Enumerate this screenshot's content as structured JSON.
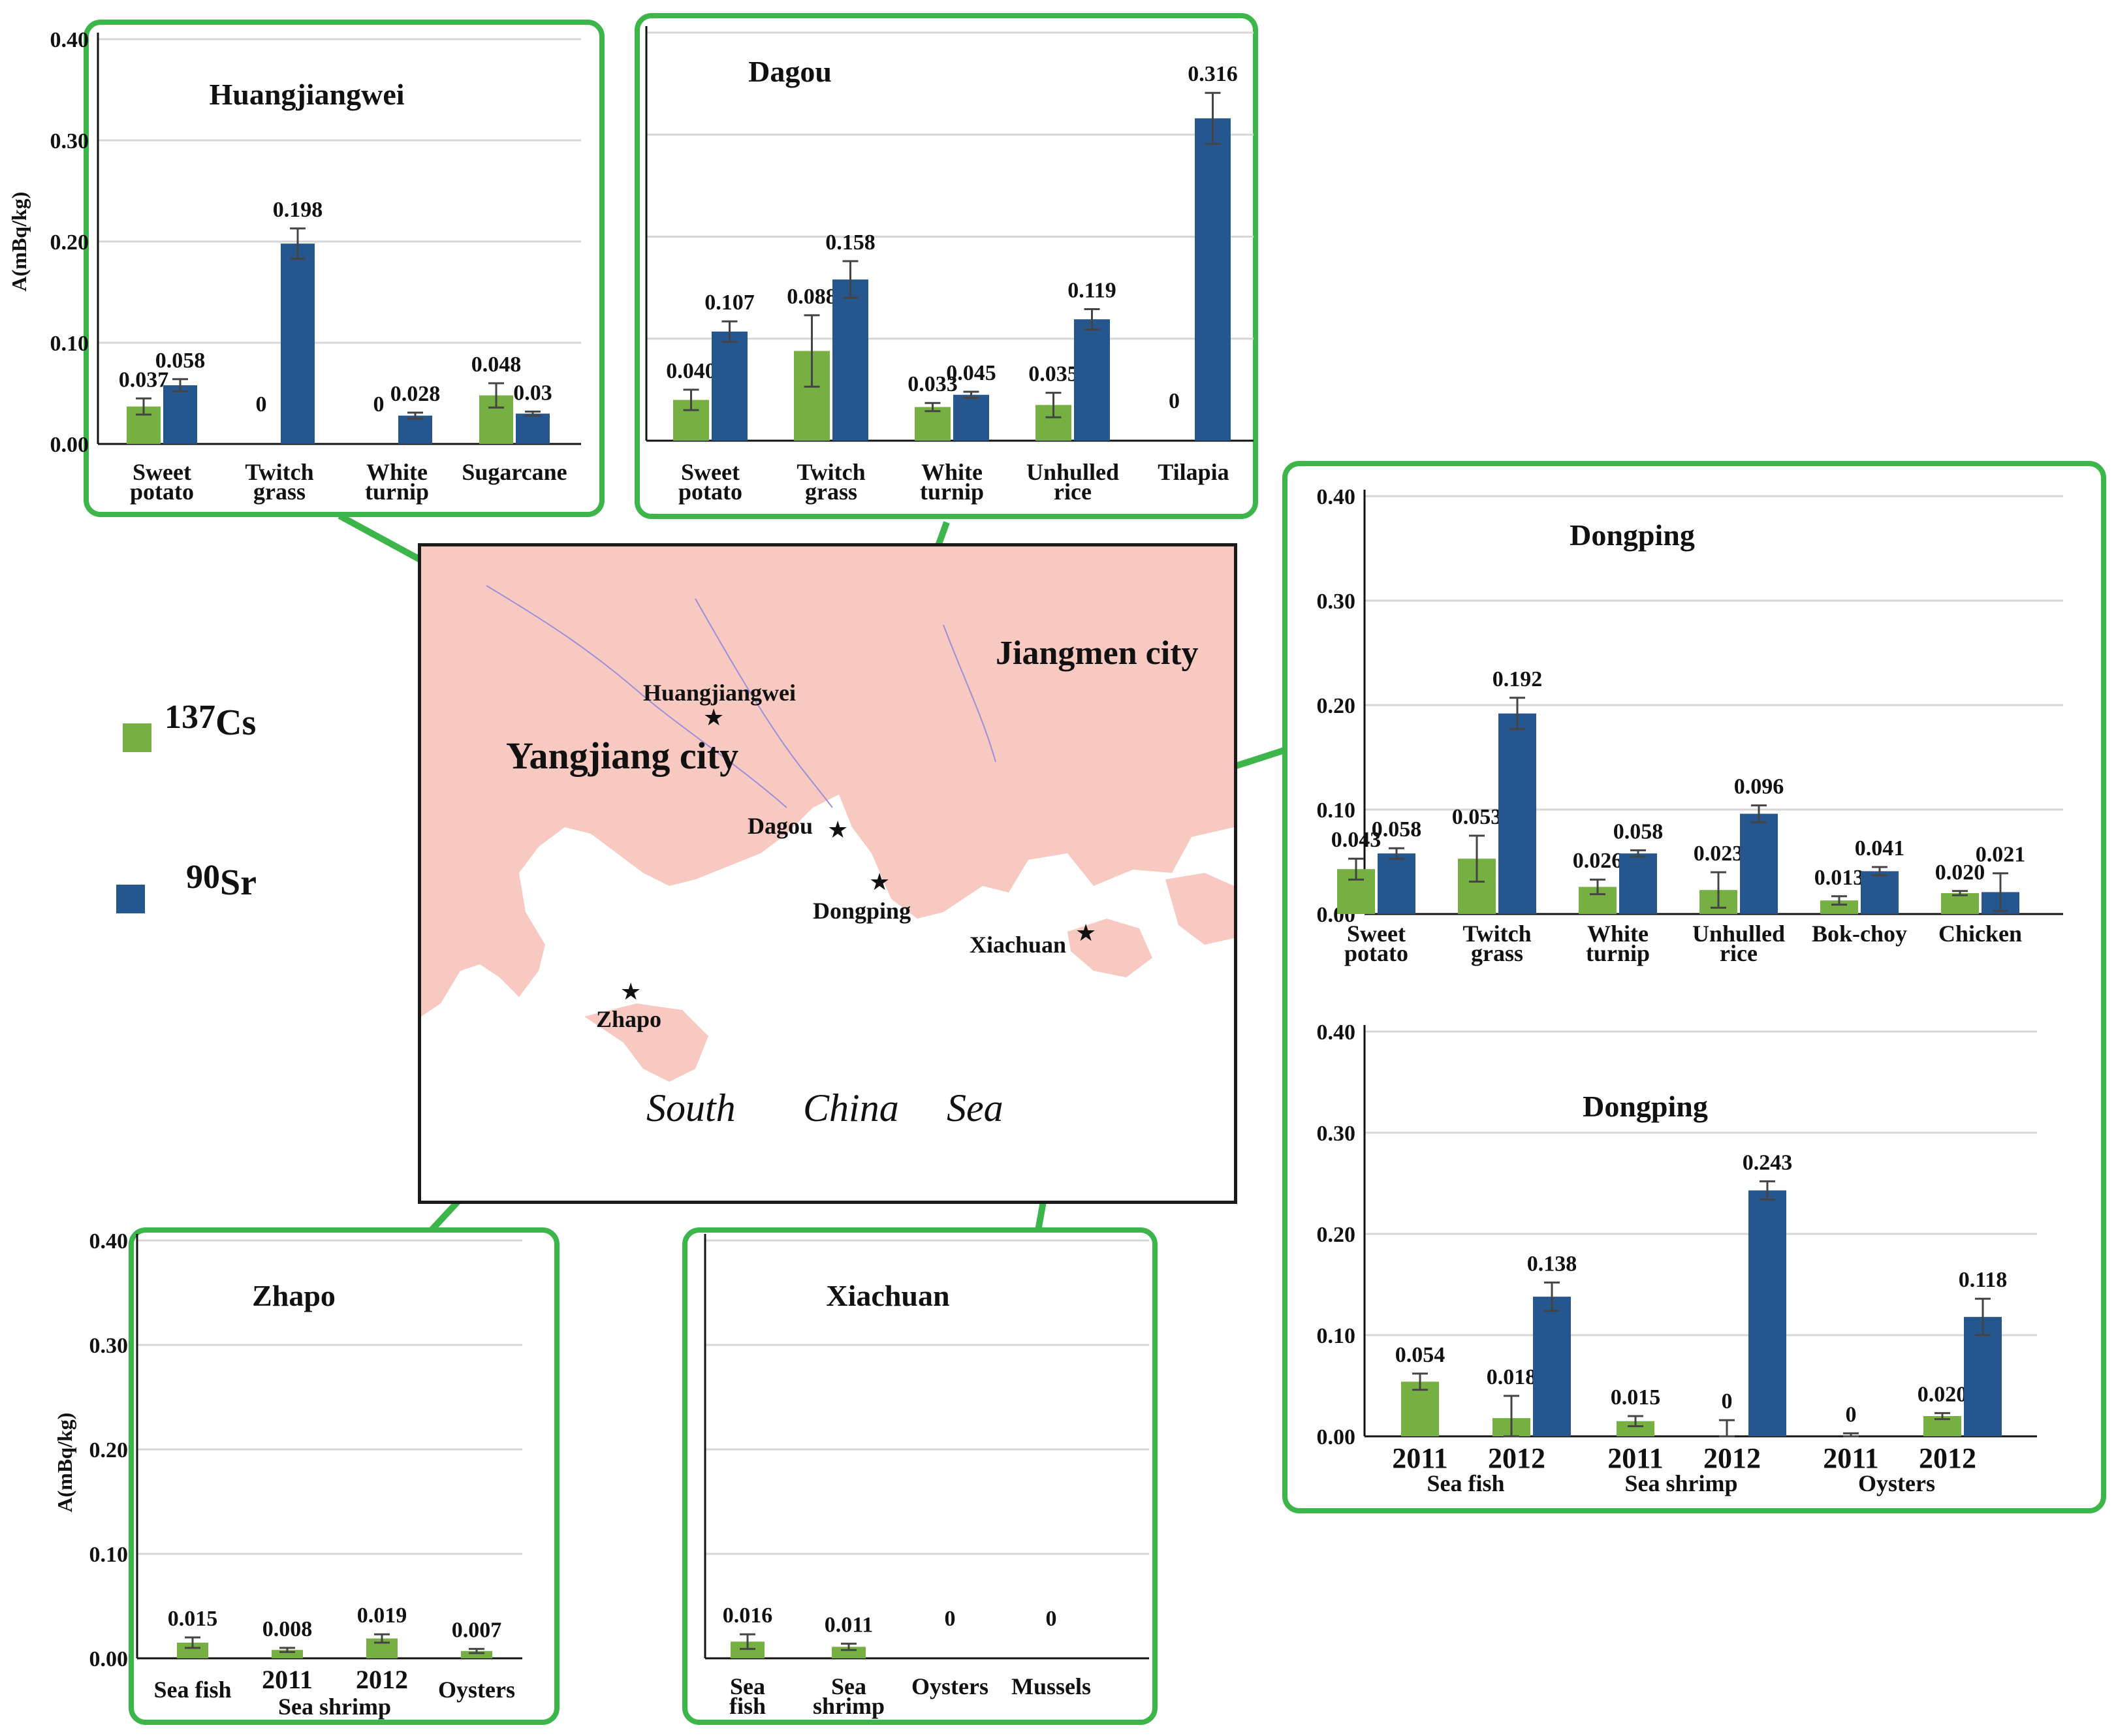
{
  "colors": {
    "cs137": "#76b043",
    "sr90": "#25578e",
    "frame": "#3cb54a",
    "land": "#f7c9c0",
    "sea": "#ffffff"
  },
  "legend": {
    "cs": {
      "mass": "137",
      "element": "Cs"
    },
    "sr": {
      "mass": "90",
      "element": "Sr"
    }
  },
  "map": {
    "labels": {
      "yangjiang": "Yangjiang city",
      "jiangmen": "Jiangmen city",
      "sea_1": "South",
      "sea_2": "China",
      "sea_3": "Sea"
    },
    "sites": {
      "huangjiangwei": "Huangjiangwei",
      "dagou": "Dagou",
      "dongping": "Dongping",
      "xiachuan": "Xiachuan",
      "zhapo": "Zhapo"
    }
  },
  "chart_data": [
    {
      "id": "huangjiangwei",
      "type": "bar",
      "title": "Huangjiangwei",
      "ylabel": "A(mBq/kg)",
      "ylim": [
        0,
        0.4
      ],
      "yticks": [
        "0.00",
        "0.10",
        "0.20",
        "0.30",
        "0.40"
      ],
      "categories": [
        [
          "Sweet",
          "potato"
        ],
        [
          "Twitch",
          "grass"
        ],
        [
          "White",
          "turnip"
        ],
        [
          "Sugarcane"
        ]
      ],
      "series": [
        {
          "name": "137Cs",
          "values": [
            0.037,
            0,
            0,
            0.048
          ],
          "errors": [
            0.008,
            0,
            0,
            0.012
          ],
          "labels": [
            "0.037",
            "0",
            "0",
            "0.048"
          ]
        },
        {
          "name": "90Sr",
          "values": [
            0.058,
            0.198,
            0.028,
            0.03
          ],
          "errors": [
            0.006,
            0.015,
            0.003,
            0.002
          ],
          "labels": [
            "0.058",
            "0.198",
            "0.028",
            "0.03"
          ]
        }
      ]
    },
    {
      "id": "dagou",
      "type": "bar",
      "title": "Dagou",
      "ylim": [
        0,
        0.4
      ],
      "categories": [
        [
          "Sweet",
          "potato"
        ],
        [
          "Twitch",
          "grass"
        ],
        [
          "White",
          "turnip"
        ],
        [
          "Unhulled",
          "rice"
        ],
        [
          "Tilapia"
        ]
      ],
      "series": [
        {
          "name": "137Cs",
          "values": [
            0.04,
            0.088,
            0.033,
            0.035,
            0
          ],
          "errors": [
            0.01,
            0.035,
            0.004,
            0.012,
            0
          ],
          "labels": [
            "0.040",
            "0.088",
            "0.033",
            "0.035",
            "0"
          ]
        },
        {
          "name": "90Sr",
          "values": [
            0.107,
            0.158,
            0.045,
            0.119,
            0.316
          ],
          "errors": [
            0.01,
            0.018,
            0.003,
            0.01,
            0.025
          ],
          "labels": [
            "0.107",
            "0.158",
            "0.045",
            "0.119",
            "0.316"
          ]
        }
      ]
    },
    {
      "id": "dongping_crops",
      "type": "bar",
      "title": "Dongping",
      "ylim": [
        0,
        0.4
      ],
      "yticks": [
        "0.00",
        "0.10",
        "0.20",
        "0.30",
        "0.40"
      ],
      "categories": [
        [
          "Sweet",
          "potato"
        ],
        [
          "Twitch",
          "grass"
        ],
        [
          "White",
          "turnip"
        ],
        [
          "Unhulled",
          "rice"
        ],
        [
          "Bok-choy"
        ],
        [
          "Chicken"
        ]
      ],
      "series": [
        {
          "name": "137Cs",
          "values": [
            0.043,
            0.053,
            0.026,
            0.023,
            0.013,
            0.02
          ],
          "errors": [
            0.01,
            0.022,
            0.007,
            0.017,
            0.004,
            0.002
          ],
          "labels": [
            "0.043",
            "0.053",
            "0.026",
            "0.023",
            "0.013",
            "0.020"
          ]
        },
        {
          "name": "90Sr",
          "values": [
            0.058,
            0.192,
            0.058,
            0.096,
            0.041,
            0.021
          ],
          "errors": [
            0.005,
            0.015,
            0.003,
            0.008,
            0.004,
            0.018
          ],
          "labels": [
            "0.058",
            "0.192",
            "0.058",
            "0.096",
            "0.041",
            "0.021"
          ]
        }
      ]
    },
    {
      "id": "dongping_seafood",
      "type": "bar",
      "title": "Dongping",
      "ylim": [
        0,
        0.4
      ],
      "yticks": [
        "0.00",
        "0.10",
        "0.20",
        "0.30",
        "0.40"
      ],
      "groups": [
        "Sea fish",
        "Sea shrimp",
        "Oysters"
      ],
      "years": [
        "2011",
        "2012"
      ],
      "bars": [
        {
          "group": "Sea fish",
          "year": "2011",
          "series": "137Cs",
          "value": 0.054,
          "error": 0.008,
          "label": "0.054"
        },
        {
          "group": "Sea fish",
          "year": "2012",
          "series": "137Cs",
          "value": 0.018,
          "error": 0.022,
          "label": "0.018"
        },
        {
          "group": "Sea fish",
          "year": "2012",
          "series": "90Sr",
          "value": 0.138,
          "error": 0.014,
          "label": "0.138"
        },
        {
          "group": "Sea shrimp",
          "year": "2011",
          "series": "137Cs",
          "value": 0.015,
          "error": 0.005,
          "label": "0.015"
        },
        {
          "group": "Sea shrimp",
          "year": "2012",
          "series": "137Cs",
          "value": 0,
          "error": 0.016,
          "label": "0"
        },
        {
          "group": "Sea shrimp",
          "year": "2012",
          "series": "90Sr",
          "value": 0.243,
          "error": 0.009,
          "label": "0.243"
        },
        {
          "group": "Oysters",
          "year": "2011",
          "series": "137Cs",
          "value": 0,
          "error": 0.003,
          "label": "0"
        },
        {
          "group": "Oysters",
          "year": "2012",
          "series": "137Cs",
          "value": 0.02,
          "error": 0.003,
          "label": "0.020"
        },
        {
          "group": "Oysters",
          "year": "2012",
          "series": "90Sr",
          "value": 0.118,
          "error": 0.018,
          "label": "0.118"
        }
      ]
    },
    {
      "id": "zhapo",
      "type": "bar",
      "title": "Zhapo",
      "ylabel": "A(mBq/kg)",
      "ylim": [
        0,
        0.4
      ],
      "yticks": [
        "0.00",
        "0.10",
        "0.20",
        "0.30",
        "0.40"
      ],
      "categories": [
        "Sea fish",
        "2011",
        "2012",
        "Oysters"
      ],
      "group_label": "Sea shrimp",
      "series": [
        {
          "name": "137Cs",
          "values": [
            0.015,
            0.008,
            0.019,
            0.007
          ],
          "errors": [
            0.005,
            0.002,
            0.004,
            0.002
          ],
          "labels": [
            "0.015",
            "0.008",
            "0.019",
            "0.007"
          ]
        }
      ]
    },
    {
      "id": "xiachuan",
      "type": "bar",
      "title": "Xiachuan",
      "ylim": [
        0,
        0.4
      ],
      "categories": [
        [
          "Sea",
          "fish"
        ],
        [
          "Sea",
          "shrimp"
        ],
        [
          "Oysters"
        ],
        [
          "Mussels"
        ]
      ],
      "series": [
        {
          "name": "137Cs",
          "values": [
            0.016,
            0.011,
            0,
            0
          ],
          "errors": [
            0.007,
            0.003,
            0,
            0
          ],
          "labels": [
            "0.016",
            "0.011",
            "0",
            "0"
          ]
        }
      ]
    }
  ]
}
